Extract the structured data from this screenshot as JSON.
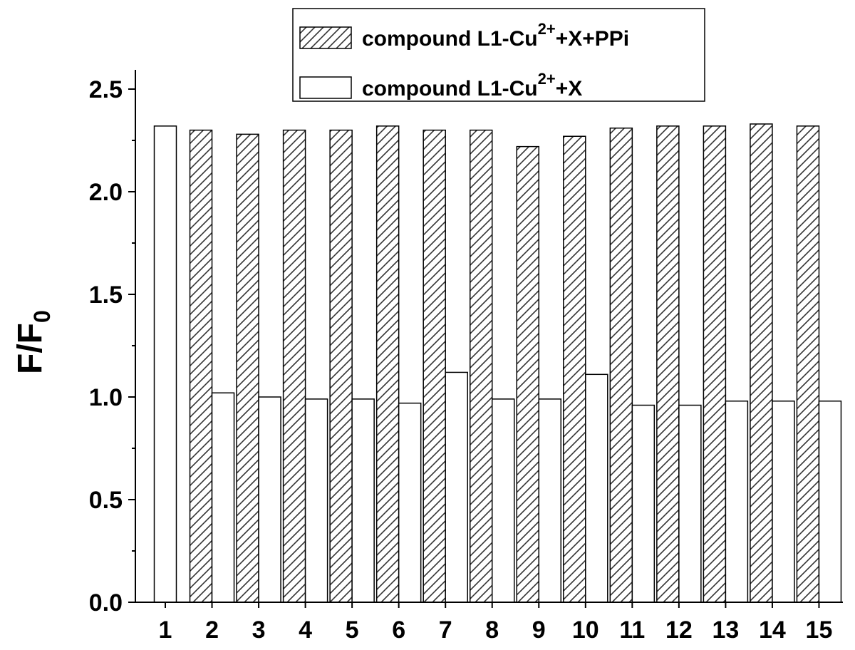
{
  "chart_data": {
    "type": "bar",
    "categories": [
      "1",
      "2",
      "3",
      "4",
      "5",
      "6",
      "7",
      "8",
      "9",
      "10",
      "11",
      "12",
      "13",
      "14",
      "15"
    ],
    "series": [
      {
        "name": "compound L1-Cu2+ +X+PPi",
        "pattern": "hatched",
        "values": [
          null,
          2.3,
          2.28,
          2.3,
          2.3,
          2.32,
          2.3,
          2.3,
          2.22,
          2.27,
          2.31,
          2.32,
          2.32,
          2.33,
          2.32
        ]
      },
      {
        "name": "compound L1-Cu2+ +X",
        "pattern": "open",
        "values": [
          2.32,
          1.02,
          1.0,
          0.99,
          0.99,
          0.97,
          1.12,
          0.99,
          0.99,
          1.11,
          0.96,
          0.96,
          0.98,
          0.98,
          0.98
        ]
      }
    ],
    "y_ticks": [
      "0.0",
      "0.5",
      "1.0",
      "1.5",
      "2.0",
      "2.5"
    ],
    "ylabel": "F/F",
    "ylabel_sub": "0",
    "ylim": [
      0,
      2.5
    ],
    "legend": {
      "placement": "top-right",
      "entries": [
        {
          "prefix": "compound L1-Cu",
          "sup": "2+",
          "suffix": "+X+PPi"
        },
        {
          "prefix": "compound L1-Cu",
          "sup": "2+",
          "suffix": "+X"
        }
      ]
    },
    "grid": false
  },
  "colors": {
    "bar_fill": "#ffffff",
    "bar_stroke": "#000000",
    "hatch": "#333333"
  }
}
